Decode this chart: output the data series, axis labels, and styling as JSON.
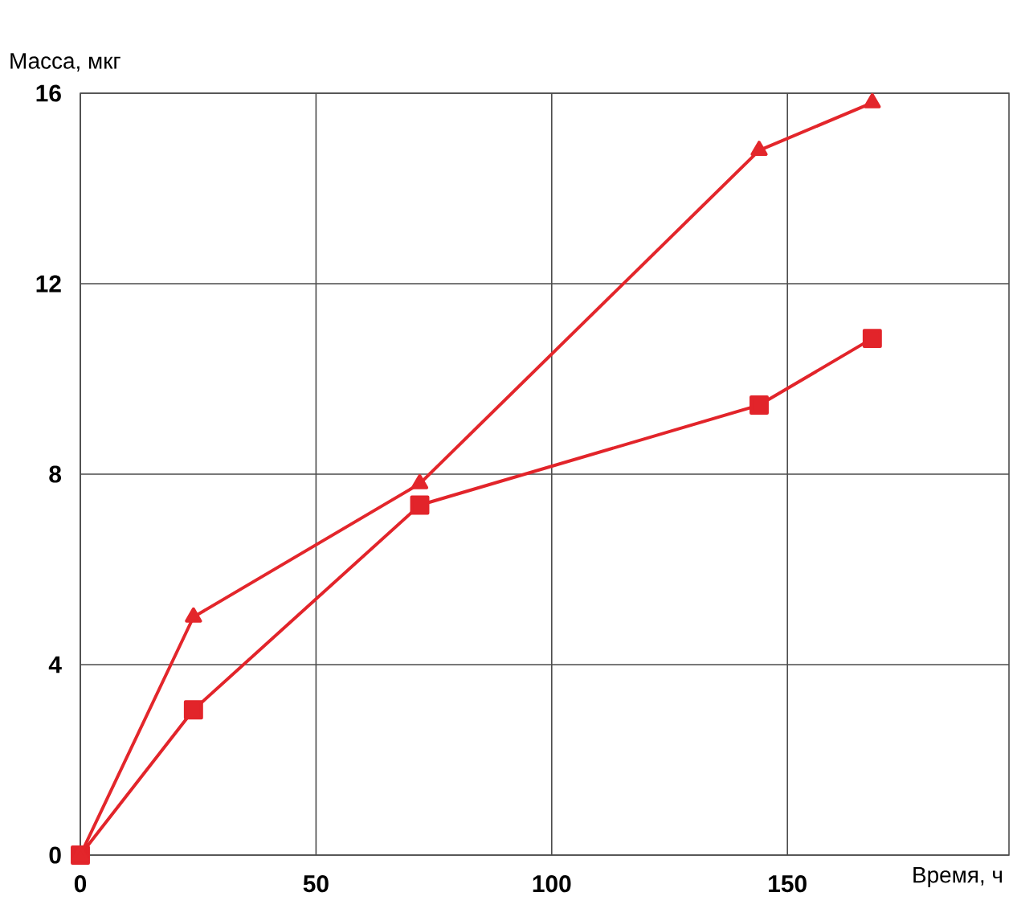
{
  "chart_data": {
    "type": "line",
    "xlabel": "Время, ч",
    "ylabel": "Масса, мкг",
    "x": [
      0,
      24,
      72,
      144,
      168
    ],
    "series": [
      {
        "color": "#e2242a",
        "marker": "square",
        "values": [
          0,
          3.05,
          7.35,
          9.45,
          10.85
        ]
      },
      {
        "color": "#e3262b",
        "marker": "triangle",
        "values": [
          0,
          5.0,
          7.8,
          14.8,
          15.8
        ]
      }
    ],
    "xlim": [
      0,
      197
    ],
    "ylim": [
      0,
      16
    ],
    "xticks": [
      0,
      50,
      100,
      150
    ],
    "yticks": [
      0,
      4,
      8,
      12,
      16
    ],
    "grid": true,
    "line_style": "solid"
  }
}
